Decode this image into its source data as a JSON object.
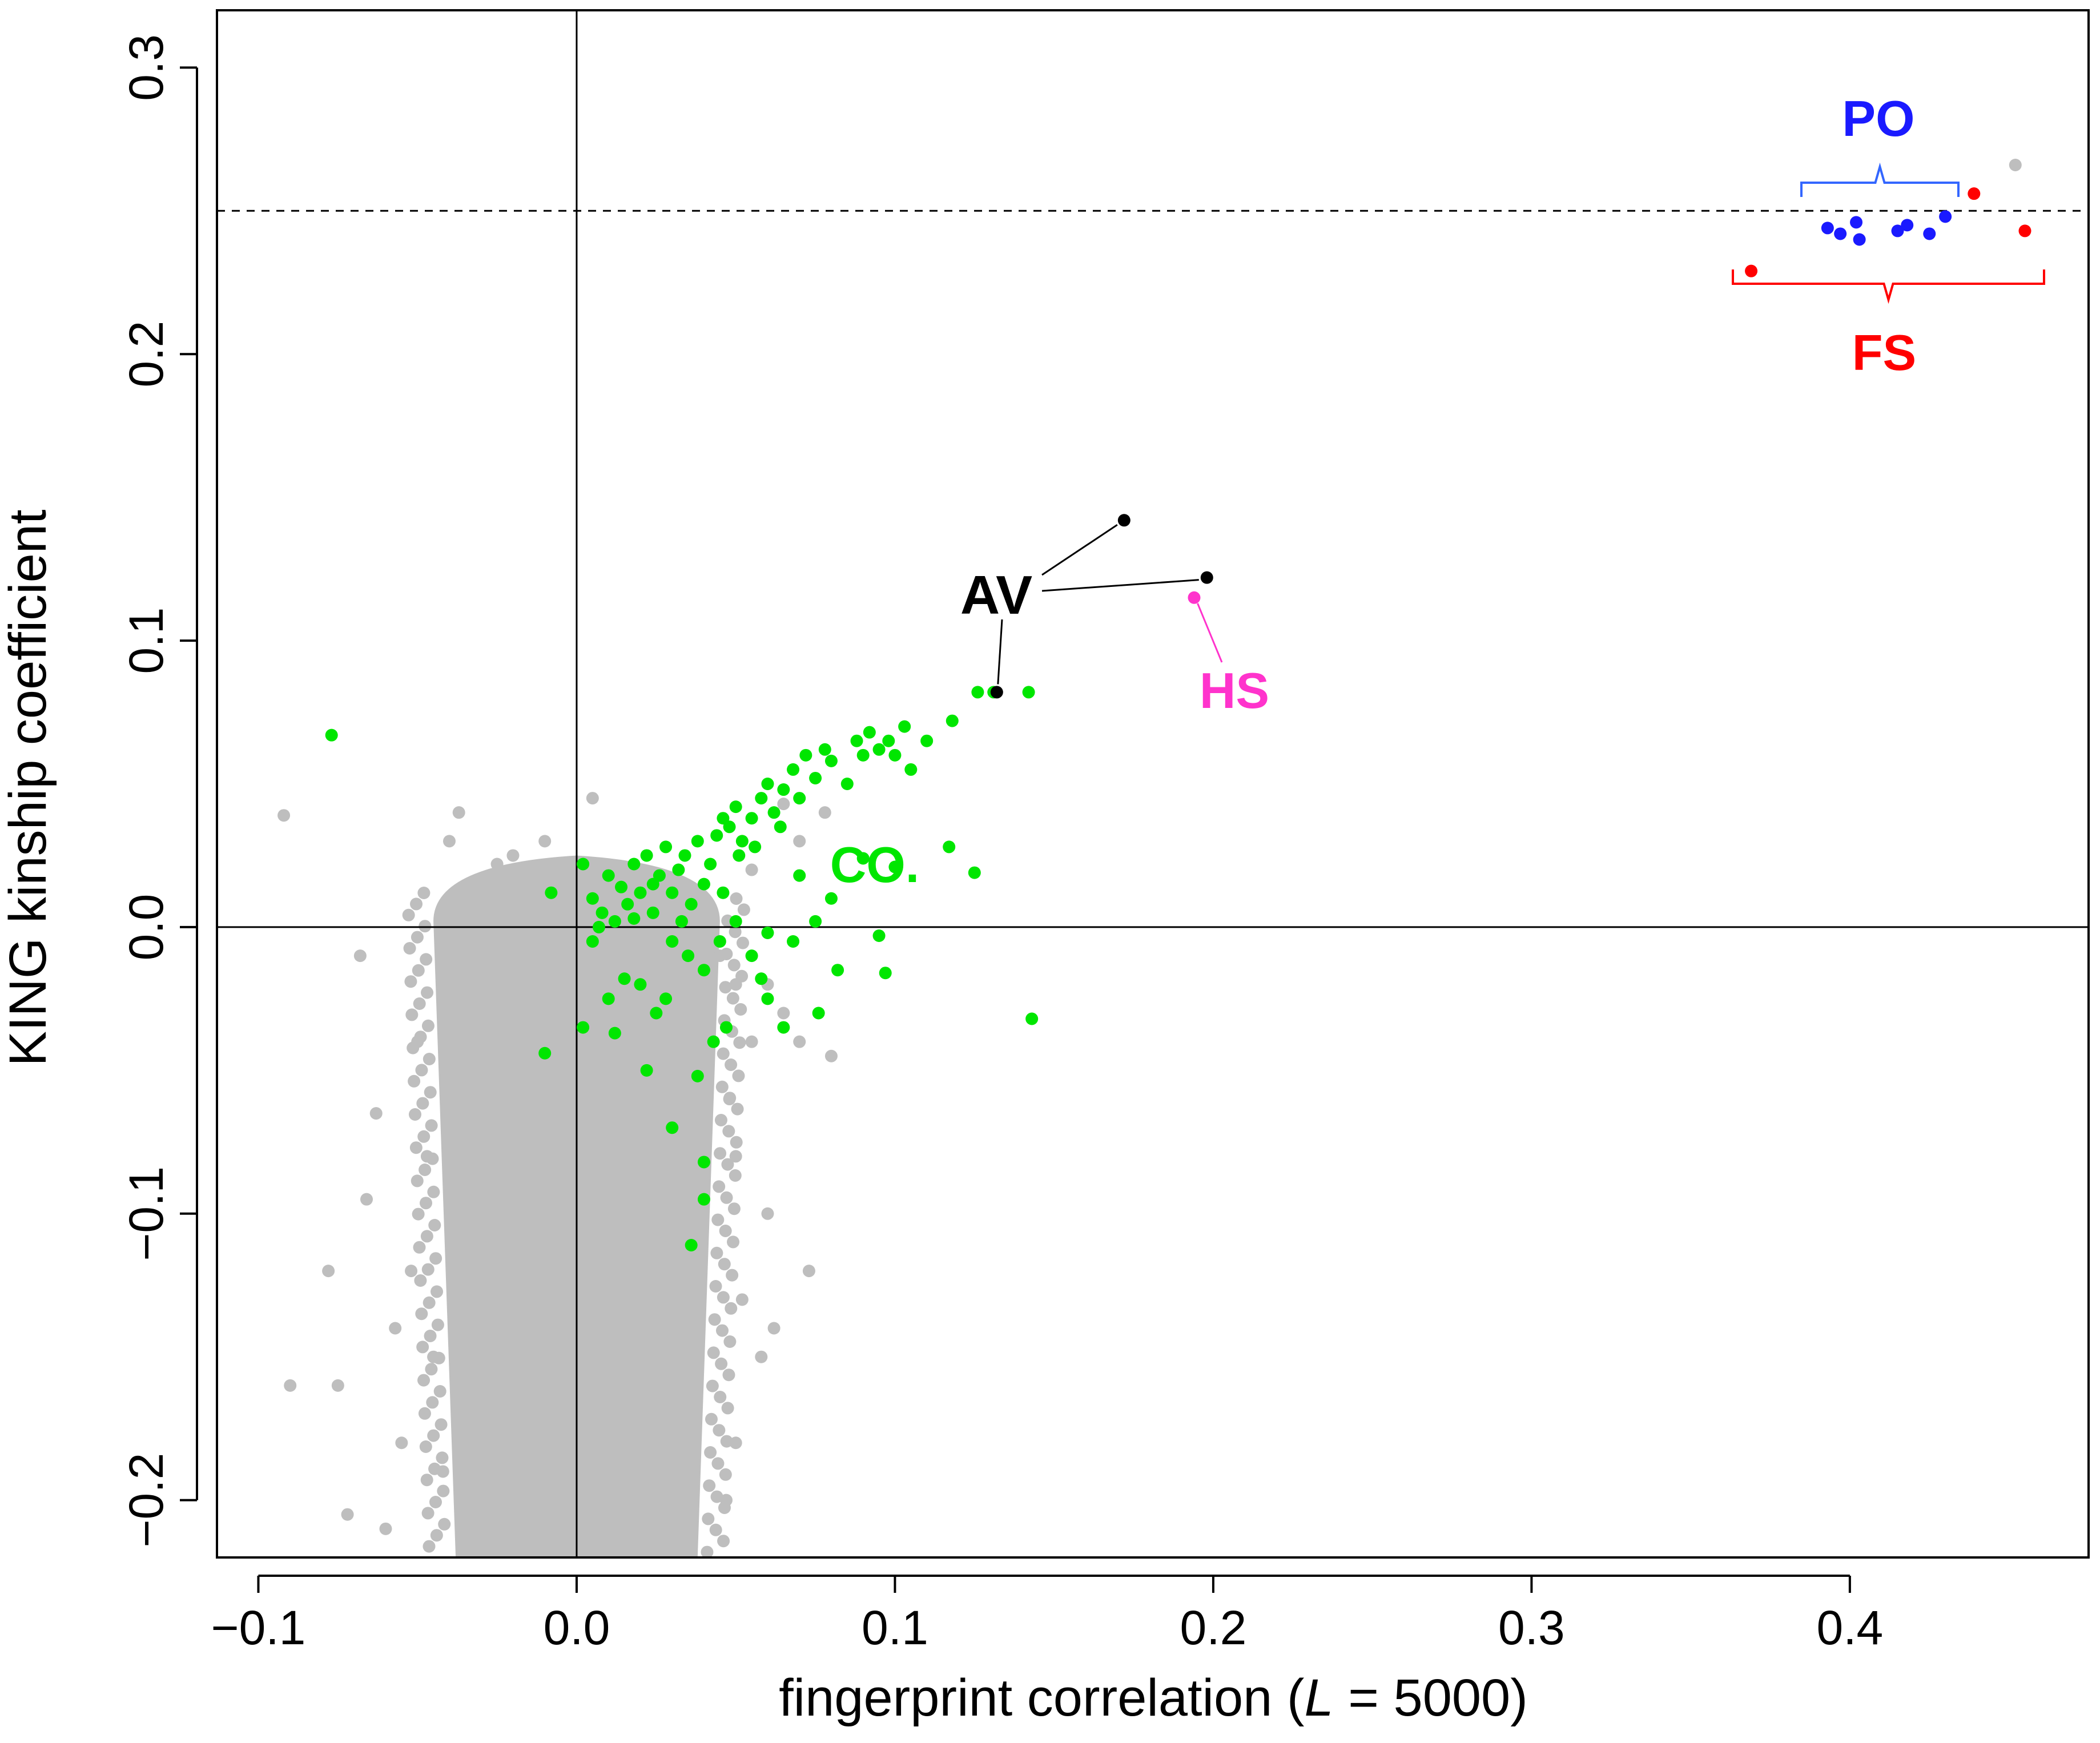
{
  "chart_data": {
    "type": "scatter",
    "title": "",
    "xlabel_prefix": "fingerprint correlation (",
    "xlabel_var": "L",
    "xlabel_suffix": " = 5000)",
    "ylabel": "KING kinship coefficient",
    "xlim": [
      -0.113,
      0.475
    ],
    "ylim": [
      -0.22,
      0.32
    ],
    "xticks": [
      -0.1,
      0.0,
      0.1,
      0.2,
      0.3,
      0.4
    ],
    "xtick_labels": [
      "−0.1",
      "0.0",
      "0.1",
      "0.2",
      "0.3",
      "0.4"
    ],
    "yticks": [
      -0.2,
      -0.1,
      0.0,
      0.1,
      0.2,
      0.3
    ],
    "ytick_labels": [
      "−0.2",
      "−0.1",
      "0.0",
      "0.1",
      "0.2",
      "0.3"
    ],
    "reference_lines": {
      "vertical_x": 0.0,
      "horizontal_y": 0.0,
      "dashed_y": 0.25
    },
    "colors": {
      "background_pairs": "#bebebe",
      "CO": "#00e600",
      "AV": "#000000",
      "HS": "#ff33cc",
      "PO": "#1a1aff",
      "FS": "#ff0000",
      "PO_bracket": "#3366ff"
    },
    "series": [
      {
        "name": "background",
        "color": "#bebebe",
        "points": [
          [
            -0.092,
            0.039
          ],
          [
            -0.068,
            -0.01
          ],
          [
            -0.063,
            -0.065
          ],
          [
            -0.057,
            -0.14
          ],
          [
            -0.075,
            -0.16
          ],
          [
            -0.09,
            -0.16
          ],
          [
            -0.078,
            -0.12
          ],
          [
            -0.066,
            -0.095
          ],
          [
            -0.06,
            -0.21
          ],
          [
            -0.055,
            -0.18
          ],
          [
            -0.072,
            -0.205
          ],
          [
            -0.05,
            -0.04
          ],
          [
            -0.047,
            -0.08
          ],
          [
            -0.052,
            -0.12
          ],
          [
            -0.045,
            -0.15
          ],
          [
            -0.042,
            -0.19
          ],
          [
            -0.038,
            -0.06
          ],
          [
            -0.035,
            0.005
          ],
          [
            -0.03,
            0.015
          ],
          [
            -0.025,
            0.022
          ],
          [
            -0.04,
            0.03
          ],
          [
            -0.037,
            0.04
          ],
          [
            -0.02,
            0.025
          ],
          [
            -0.01,
            0.03
          ],
          [
            0.005,
            0.045
          ],
          [
            0.045,
            -0.01
          ],
          [
            0.05,
            -0.02
          ],
          [
            0.055,
            -0.04
          ],
          [
            0.048,
            -0.06
          ],
          [
            0.05,
            -0.08
          ],
          [
            0.06,
            -0.1
          ],
          [
            0.052,
            -0.13
          ],
          [
            0.058,
            -0.15
          ],
          [
            0.05,
            -0.18
          ],
          [
            0.047,
            -0.2
          ],
          [
            0.06,
            -0.02
          ],
          [
            0.065,
            -0.03
          ],
          [
            0.07,
            -0.04
          ],
          [
            0.08,
            -0.045
          ],
          [
            0.073,
            -0.12
          ],
          [
            0.062,
            -0.14
          ],
          [
            0.055,
            0.02
          ],
          [
            0.07,
            0.03
          ],
          [
            0.065,
            0.043
          ],
          [
            0.078,
            0.04
          ],
          [
            0.06,
            0.05
          ],
          [
            0.452,
            0.266
          ]
        ],
        "density_band": {
          "x_center": 0.0,
          "x_halfwidth_top": 0.045,
          "x_halfwidth_bottom": 0.038,
          "y_top": 0.02,
          "y_bottom": -0.22
        }
      },
      {
        "name": "CO",
        "color": "#00e600",
        "points": [
          [
            -0.077,
            0.067
          ],
          [
            -0.01,
            -0.044
          ],
          [
            -0.008,
            0.012
          ],
          [
            0.002,
            0.022
          ],
          [
            0.005,
            0.01
          ],
          [
            0.008,
            0.005
          ],
          [
            0.01,
            0.018
          ],
          [
            0.012,
            0.002
          ],
          [
            0.014,
            0.014
          ],
          [
            0.016,
            0.008
          ],
          [
            0.018,
            0.022
          ],
          [
            0.02,
            0.012
          ],
          [
            0.022,
            0.025
          ],
          [
            0.024,
            0.005
          ],
          [
            0.026,
            0.018
          ],
          [
            0.028,
            0.028
          ],
          [
            0.03,
            0.012
          ],
          [
            0.032,
            0.02
          ],
          [
            0.034,
            0.025
          ],
          [
            0.036,
            0.008
          ],
          [
            0.038,
            0.03
          ],
          [
            0.04,
            0.015
          ],
          [
            0.042,
            0.022
          ],
          [
            0.044,
            0.032
          ],
          [
            0.046,
            0.038
          ],
          [
            0.048,
            0.035
          ],
          [
            0.05,
            0.042
          ],
          [
            0.052,
            0.03
          ],
          [
            0.055,
            0.038
          ],
          [
            0.058,
            0.045
          ],
          [
            0.06,
            0.05
          ],
          [
            0.062,
            0.04
          ],
          [
            0.065,
            0.048
          ],
          [
            0.068,
            0.055
          ],
          [
            0.07,
            0.045
          ],
          [
            0.072,
            0.06
          ],
          [
            0.075,
            0.052
          ],
          [
            0.078,
            0.062
          ],
          [
            0.08,
            0.058
          ],
          [
            0.085,
            0.05
          ],
          [
            0.088,
            0.065
          ],
          [
            0.09,
            0.06
          ],
          [
            0.092,
            0.068
          ],
          [
            0.095,
            0.062
          ],
          [
            0.098,
            0.065
          ],
          [
            0.1,
            0.06
          ],
          [
            0.103,
            0.07
          ],
          [
            0.105,
            0.055
          ],
          [
            0.11,
            0.065
          ],
          [
            0.118,
            0.072
          ],
          [
            0.126,
            0.082
          ],
          [
            0.131,
            0.082
          ],
          [
            0.142,
            0.082
          ],
          [
            0.117,
            0.028
          ],
          [
            0.125,
            0.019
          ],
          [
            0.1,
            0.021
          ],
          [
            0.09,
            0.024
          ],
          [
            0.08,
            0.01
          ],
          [
            0.075,
            0.002
          ],
          [
            0.068,
            -0.005
          ],
          [
            0.06,
            -0.002
          ],
          [
            0.058,
            -0.018
          ],
          [
            0.055,
            -0.01
          ],
          [
            0.05,
            0.002
          ],
          [
            0.045,
            -0.005
          ],
          [
            0.04,
            -0.015
          ],
          [
            0.035,
            -0.01
          ],
          [
            0.03,
            -0.005
          ],
          [
            0.028,
            -0.025
          ],
          [
            0.025,
            -0.03
          ],
          [
            0.02,
            -0.02
          ],
          [
            0.015,
            -0.018
          ],
          [
            0.01,
            -0.025
          ],
          [
            0.007,
            0.0
          ],
          [
            0.005,
            -0.005
          ],
          [
            0.012,
            -0.037
          ],
          [
            0.002,
            -0.035
          ],
          [
            0.022,
            -0.05
          ],
          [
            0.03,
            -0.07
          ],
          [
            0.038,
            -0.052
          ],
          [
            0.043,
            -0.04
          ],
          [
            0.047,
            -0.035
          ],
          [
            0.06,
            -0.025
          ],
          [
            0.065,
            -0.035
          ],
          [
            0.076,
            -0.03
          ],
          [
            0.082,
            -0.015
          ],
          [
            0.095,
            -0.003
          ],
          [
            0.097,
            -0.016
          ],
          [
            0.143,
            -0.032
          ],
          [
            0.04,
            -0.095
          ],
          [
            0.036,
            -0.111
          ],
          [
            0.04,
            -0.082
          ],
          [
            0.018,
            0.003
          ],
          [
            0.024,
            0.015
          ],
          [
            0.033,
            0.002
          ],
          [
            0.046,
            0.012
          ],
          [
            0.051,
            0.025
          ],
          [
            0.056,
            0.028
          ],
          [
            0.064,
            0.035
          ],
          [
            0.07,
            0.018
          ]
        ]
      },
      {
        "name": "AV",
        "color": "#000000",
        "points": [
          [
            0.172,
            0.142
          ],
          [
            0.198,
            0.122
          ],
          [
            0.132,
            0.082
          ]
        ]
      },
      {
        "name": "HS",
        "color": "#ff33cc",
        "points": [
          [
            0.194,
            0.115
          ]
        ]
      },
      {
        "name": "PO",
        "color": "#1a1aff",
        "points": [
          [
            0.393,
            0.244
          ],
          [
            0.397,
            0.242
          ],
          [
            0.402,
            0.246
          ],
          [
            0.403,
            0.24
          ],
          [
            0.415,
            0.243
          ],
          [
            0.418,
            0.245
          ],
          [
            0.425,
            0.242
          ],
          [
            0.43,
            0.248
          ]
        ]
      },
      {
        "name": "FS",
        "color": "#ff0000",
        "points": [
          [
            0.369,
            0.229
          ],
          [
            0.439,
            0.256
          ],
          [
            0.455,
            0.243
          ]
        ]
      }
    ],
    "annotations": [
      {
        "label": "PO",
        "color": "#1a1aff"
      },
      {
        "label": "FS",
        "color": "#ff0000"
      },
      {
        "label": "AV",
        "color": "#000000"
      },
      {
        "label": "HS",
        "color": "#ff33cc"
      },
      {
        "label": "CO.",
        "color": "#00e600"
      }
    ]
  }
}
